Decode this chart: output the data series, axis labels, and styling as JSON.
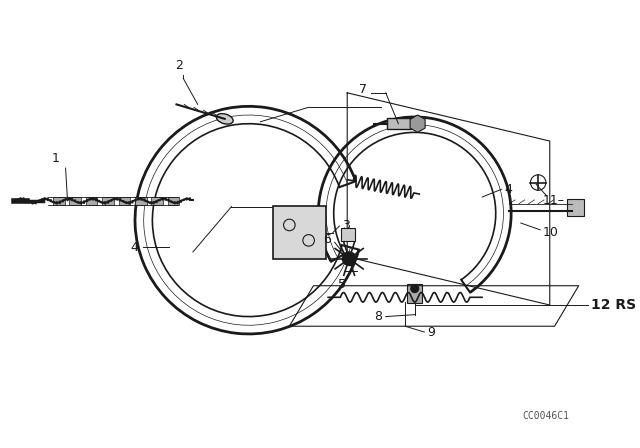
{
  "background_color": "#ffffff",
  "line_color": "#1a1a1a",
  "label_color": "#000000",
  "watermark": "CC0046C1",
  "fig_w": 6.4,
  "fig_h": 4.48,
  "dpi": 100,
  "label_fontsize": 9,
  "watermark_fontsize": 7
}
